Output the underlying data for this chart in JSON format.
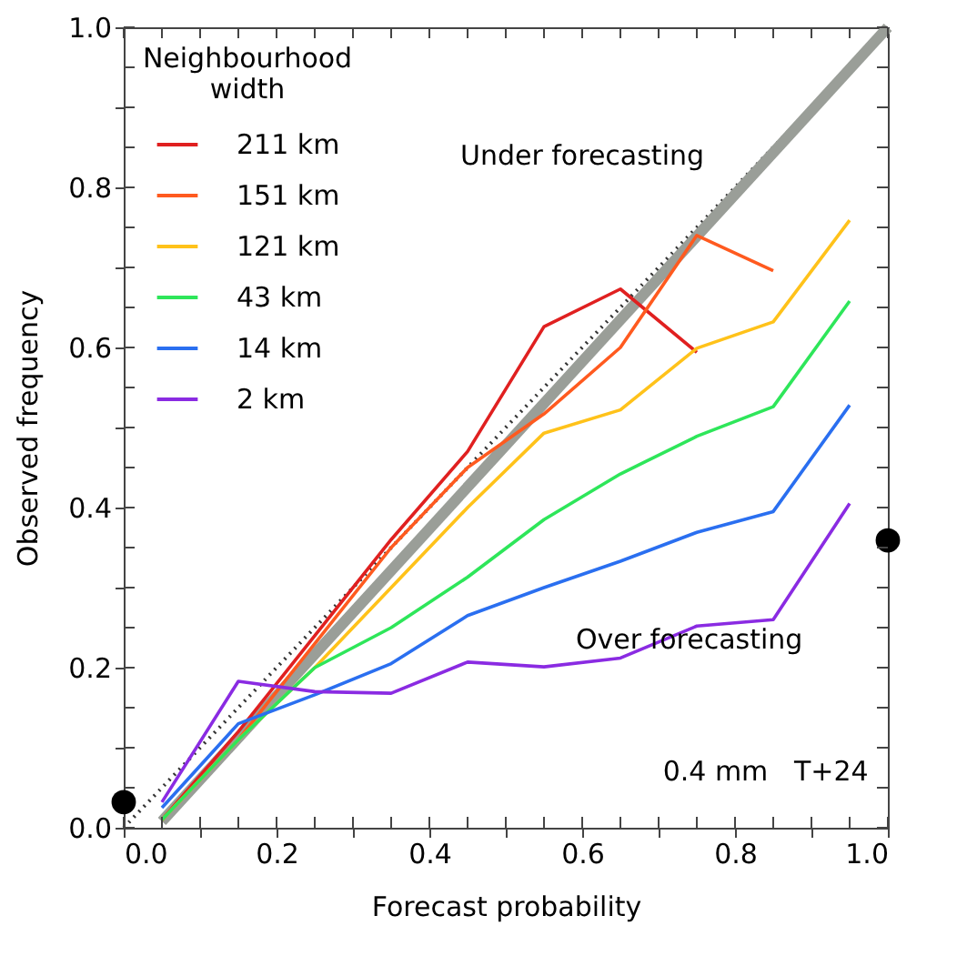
{
  "chart_data": {
    "type": "line",
    "xlabel": "Forecast probability",
    "ylabel": "Observed frequency",
    "legend_title": "Neighbourhood width",
    "xlim": [
      0,
      1
    ],
    "ylim": [
      0,
      1
    ],
    "xticks": [
      {
        "value": 0,
        "label": "0.0"
      },
      {
        "value": 0.05,
        "label": null
      },
      {
        "value": 0.1,
        "label": null
      },
      {
        "value": 0.15,
        "label": null
      },
      {
        "value": 0.2,
        "label": "0.2"
      },
      {
        "value": 0.25,
        "label": null
      },
      {
        "value": 0.3,
        "label": null
      },
      {
        "value": 0.35,
        "label": null
      },
      {
        "value": 0.4,
        "label": "0.4"
      },
      {
        "value": 0.45,
        "label": null
      },
      {
        "value": 0.5,
        "label": null
      },
      {
        "value": 0.55,
        "label": null
      },
      {
        "value": 0.6,
        "label": "0.6"
      },
      {
        "value": 0.65,
        "label": null
      },
      {
        "value": 0.7,
        "label": null
      },
      {
        "value": 0.75,
        "label": null
      },
      {
        "value": 0.8,
        "label": "0.8"
      },
      {
        "value": 0.85,
        "label": null
      },
      {
        "value": 0.9,
        "label": null
      },
      {
        "value": 0.95,
        "label": null
      },
      {
        "value": 1,
        "label": "1.0"
      }
    ],
    "yticks": [
      {
        "value": 0,
        "label": "0.0"
      },
      {
        "value": 0.05,
        "label": null
      },
      {
        "value": 0.1,
        "label": null
      },
      {
        "value": 0.15,
        "label": null
      },
      {
        "value": 0.2,
        "label": "0.2"
      },
      {
        "value": 0.25,
        "label": null
      },
      {
        "value": 0.3,
        "label": null
      },
      {
        "value": 0.35,
        "label": null
      },
      {
        "value": 0.4,
        "label": "0.4"
      },
      {
        "value": 0.45,
        "label": null
      },
      {
        "value": 0.5,
        "label": null
      },
      {
        "value": 0.55,
        "label": null
      },
      {
        "value": 0.6,
        "label": "0.6"
      },
      {
        "value": 0.65,
        "label": null
      },
      {
        "value": 0.7,
        "label": null
      },
      {
        "value": 0.75,
        "label": null
      },
      {
        "value": 0.8,
        "label": "0.8"
      },
      {
        "value": 0.85,
        "label": null
      },
      {
        "value": 0.9,
        "label": null
      },
      {
        "value": 0.95,
        "label": null
      },
      {
        "value": 1,
        "label": "1.0"
      }
    ],
    "legend": "top left",
    "line_style": "solid",
    "annotations": [
      "Under forecasting",
      "Over forecasting",
      "0.4 mm   T+24"
    ],
    "series": [
      {
        "type": "line",
        "line_style": "dotted",
        "color": "#333333",
        "x": [
          0,
          1
        ],
        "values": [
          0,
          1
        ]
      },
      {
        "type": "line",
        "color": "#9a9e98",
        "x": [
          0.05,
          1
        ],
        "values": [
          0.008,
          1
        ]
      },
      {
        "name": "211 km",
        "color": "#e02020",
        "x": [
          0.05,
          0.15,
          0.25,
          0.35,
          0.45,
          0.55,
          0.65,
          0.75
        ],
        "values": [
          0.01,
          0.12,
          0.24,
          0.36,
          0.47,
          0.626,
          0.673,
          0.594
        ]
      },
      {
        "name": "151 km",
        "color": "#ff5a1f",
        "x": [
          0.05,
          0.15,
          0.25,
          0.35,
          0.45,
          0.55,
          0.65,
          0.75,
          0.85
        ],
        "values": [
          0.01,
          0.11,
          0.23,
          0.35,
          0.45,
          0.517,
          0.6,
          0.74,
          0.696
        ]
      },
      {
        "name": "121 km",
        "color": "#ffc21a",
        "x": [
          0.05,
          0.15,
          0.25,
          0.35,
          0.45,
          0.55,
          0.65,
          0.75,
          0.85,
          0.95
        ],
        "values": [
          0.01,
          0.11,
          0.2,
          0.3,
          0.4,
          0.493,
          0.522,
          0.599,
          0.632,
          0.759
        ]
      },
      {
        "name": "43 km",
        "color": "#2ee65a",
        "x": [
          0.05,
          0.15,
          0.25,
          0.35,
          0.45,
          0.55,
          0.65,
          0.75,
          0.85,
          0.95
        ],
        "values": [
          0.01,
          0.11,
          0.2,
          0.25,
          0.313,
          0.385,
          0.442,
          0.489,
          0.526,
          0.658
        ]
      },
      {
        "name": "14 km",
        "color": "#2a6ff0",
        "x": [
          0.05,
          0.15,
          0.25,
          0.35,
          0.45,
          0.55,
          0.65,
          0.75,
          0.85,
          0.95
        ],
        "values": [
          0.025,
          0.13,
          0.166,
          0.205,
          0.265,
          0.3,
          0.333,
          0.369,
          0.395,
          0.528
        ]
      },
      {
        "name": "2 km",
        "color": "#8a2be2",
        "x": [
          0.05,
          0.15,
          0.25,
          0.35,
          0.45,
          0.55,
          0.65,
          0.75,
          0.85,
          0.95
        ],
        "values": [
          0.032,
          0.183,
          0.17,
          0.168,
          0.207,
          0.201,
          0.212,
          0.252,
          0.26,
          0.405
        ]
      },
      {
        "type": "scatter",
        "marker": "circle",
        "color": "#000000",
        "x": [
          0,
          1
        ],
        "values": [
          0.032,
          0.359
        ]
      }
    ]
  }
}
